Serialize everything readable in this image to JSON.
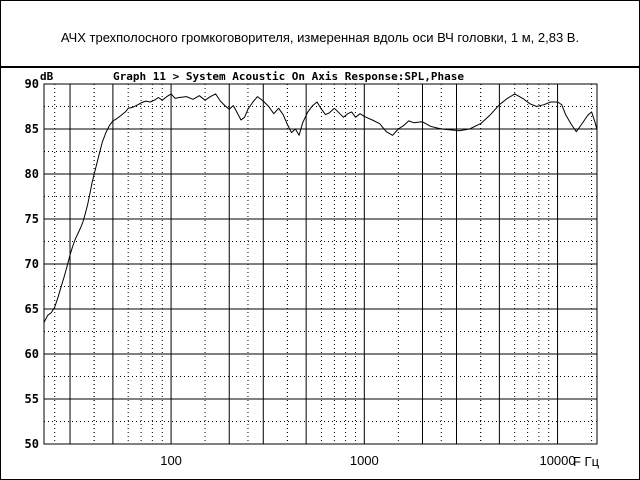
{
  "header": {
    "caption": "АЧХ трехполосного громкоговорителя, измеренная вдоль оси ВЧ головки, 1 м, 2,83 В."
  },
  "chart_data": {
    "type": "line",
    "title": "Graph 11 > System Acoustic On Axis Response:SPL,Phase",
    "ylabel": "dB",
    "xlabel": "F Гц",
    "xscale": "log",
    "xlim": [
      22,
      16000
    ],
    "ylim": [
      50,
      90
    ],
    "grid": true,
    "x_tick_labels": [
      "100",
      "1000",
      "10000"
    ],
    "y_tick_labels": [
      "50",
      "55",
      "60",
      "65",
      "70",
      "75",
      "80",
      "85",
      "90"
    ],
    "series": [
      {
        "values": [
          [
            22,
            63.5
          ],
          [
            23,
            64.3
          ],
          [
            24,
            64.6
          ],
          [
            25,
            65.2
          ],
          [
            26,
            66.3
          ],
          [
            27,
            67.5
          ],
          [
            28,
            68.6
          ],
          [
            29,
            69.8
          ],
          [
            30,
            71.0
          ],
          [
            31,
            72.0
          ],
          [
            32,
            72.8
          ],
          [
            33,
            73.4
          ],
          [
            34,
            74.0
          ],
          [
            35,
            74.7
          ],
          [
            36,
            75.6
          ],
          [
            37,
            76.6
          ],
          [
            38,
            77.8
          ],
          [
            39,
            79.0
          ],
          [
            40,
            80.0
          ],
          [
            42,
            81.8
          ],
          [
            44,
            83.5
          ],
          [
            46,
            84.6
          ],
          [
            48,
            85.4
          ],
          [
            50,
            85.9
          ],
          [
            52,
            86.1
          ],
          [
            55,
            86.5
          ],
          [
            58,
            86.9
          ],
          [
            60,
            87.3
          ],
          [
            63,
            87.4
          ],
          [
            66,
            87.6
          ],
          [
            70,
            87.9
          ],
          [
            74,
            88.1
          ],
          [
            78,
            88.0
          ],
          [
            82,
            88.2
          ],
          [
            86,
            88.5
          ],
          [
            90,
            88.2
          ],
          [
            95,
            88.6
          ],
          [
            100,
            88.9
          ],
          [
            105,
            88.4
          ],
          [
            110,
            88.5
          ],
          [
            120,
            88.6
          ],
          [
            130,
            88.3
          ],
          [
            140,
            88.7
          ],
          [
            150,
            88.2
          ],
          [
            160,
            88.6
          ],
          [
            170,
            88.9
          ],
          [
            180,
            88.1
          ],
          [
            190,
            87.6
          ],
          [
            200,
            87.2
          ],
          [
            210,
            87.6
          ],
          [
            220,
            86.8
          ],
          [
            230,
            86.0
          ],
          [
            240,
            86.3
          ],
          [
            250,
            87.2
          ],
          [
            265,
            88.0
          ],
          [
            280,
            88.6
          ],
          [
            300,
            88.1
          ],
          [
            320,
            87.5
          ],
          [
            340,
            86.7
          ],
          [
            360,
            87.3
          ],
          [
            380,
            86.6
          ],
          [
            400,
            85.5
          ],
          [
            420,
            84.6
          ],
          [
            440,
            85.0
          ],
          [
            460,
            84.3
          ],
          [
            480,
            85.7
          ],
          [
            510,
            86.9
          ],
          [
            540,
            87.6
          ],
          [
            570,
            88.0
          ],
          [
            600,
            87.2
          ],
          [
            630,
            86.6
          ],
          [
            660,
            86.8
          ],
          [
            700,
            87.3
          ],
          [
            740,
            86.8
          ],
          [
            780,
            86.3
          ],
          [
            820,
            86.7
          ],
          [
            860,
            86.9
          ],
          [
            900,
            86.3
          ],
          [
            950,
            86.7
          ],
          [
            1000,
            86.4
          ],
          [
            1100,
            86.0
          ],
          [
            1200,
            85.6
          ],
          [
            1300,
            84.7
          ],
          [
            1400,
            84.3
          ],
          [
            1500,
            85.0
          ],
          [
            1600,
            85.4
          ],
          [
            1700,
            85.9
          ],
          [
            1800,
            85.7
          ],
          [
            2000,
            85.8
          ],
          [
            2200,
            85.3
          ],
          [
            2500,
            85.0
          ],
          [
            2800,
            84.9
          ],
          [
            3100,
            84.8
          ],
          [
            3500,
            85.0
          ],
          [
            4000,
            85.6
          ],
          [
            4500,
            86.6
          ],
          [
            5000,
            87.7
          ],
          [
            5500,
            88.4
          ],
          [
            6000,
            88.9
          ],
          [
            6600,
            88.4
          ],
          [
            7200,
            87.8
          ],
          [
            7800,
            87.5
          ],
          [
            8500,
            87.7
          ],
          [
            9200,
            88.0
          ],
          [
            10000,
            88.0
          ],
          [
            10500,
            87.7
          ],
          [
            11000,
            86.6
          ],
          [
            11800,
            85.5
          ],
          [
            12500,
            84.7
          ],
          [
            13300,
            85.5
          ],
          [
            14300,
            86.5
          ],
          [
            15000,
            86.9
          ],
          [
            15600,
            85.8
          ],
          [
            16000,
            84.9
          ]
        ]
      }
    ]
  }
}
